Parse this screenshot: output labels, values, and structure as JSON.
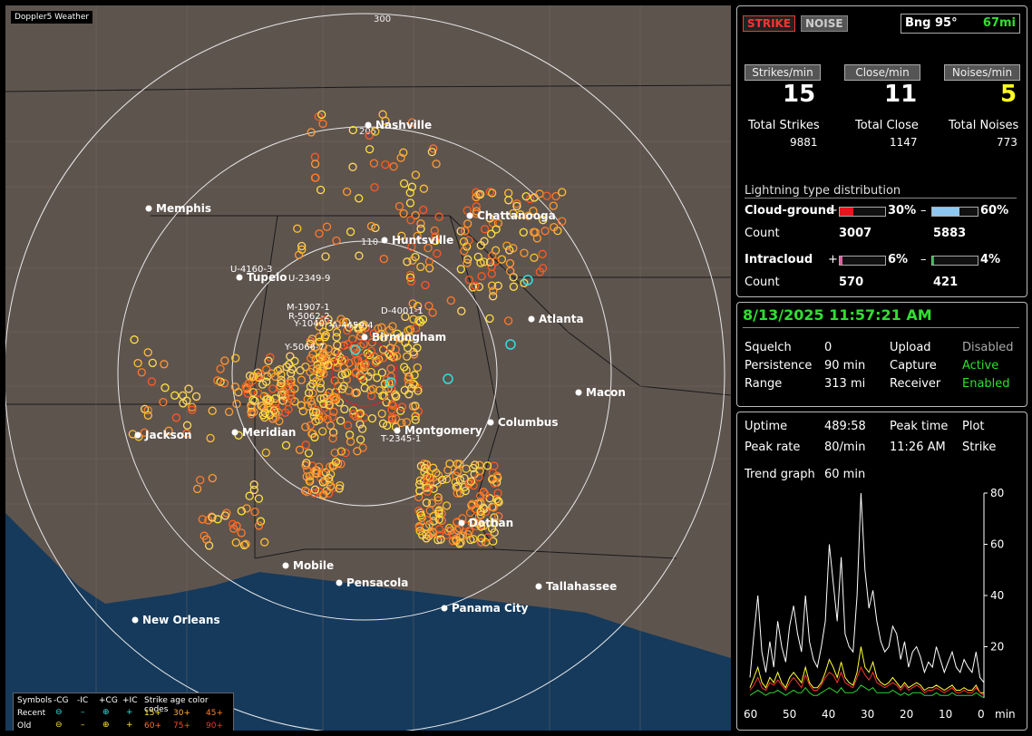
{
  "app_title": "Doppler5 Weather",
  "map": {
    "range_labels": [
      "300",
      "205",
      "110"
    ],
    "cities": [
      "Nashville",
      "Memphis",
      "Chattanooga",
      "Huntsville",
      "Tupelo",
      "Atlanta",
      "Birmingham",
      "Macon",
      "Jackson",
      "Meridian",
      "Montgomery",
      "Columbus",
      "Dothan",
      "Mobile",
      "Pensacola",
      "Tallahassee",
      "Panama City",
      "New Orleans"
    ],
    "strike_tags": [
      "U-4160-3",
      "U-2349-9",
      "M-1907-1",
      "R-5062-2",
      "Y-1040-1",
      "A-4459-4",
      "D-4001-1",
      "Y-5066-7",
      "T-2345-1"
    ]
  },
  "legend": {
    "symbols_label": "Symbols",
    "recent_label": "Recent",
    "old_label": "Old",
    "types": [
      "-CG",
      "-IC",
      "+CG",
      "+IC"
    ],
    "age_label": "Strike age color codes",
    "recent_ages": [
      "15+",
      "30+",
      "45+"
    ],
    "old_ages": [
      "60+",
      "75+",
      "90+"
    ]
  },
  "status": {
    "strike_btn": "STRIKE",
    "noise_btn": "NOISE",
    "bearing": "Bng 95°",
    "distance": "67mi"
  },
  "rates": {
    "strikes_label": "Strikes/min",
    "close_label": "Close/min",
    "noises_label": "Noises/min",
    "strikes_value": "15",
    "close_value": "11",
    "noises_value": "5",
    "total_strikes_label": "Total Strikes",
    "total_close_label": "Total Close",
    "total_noises_label": "Total Noises",
    "total_strikes": "9881",
    "total_close": "1147",
    "total_noises": "773"
  },
  "distribution": {
    "title": "Lightning type distribution",
    "cg_label": "Cloud-ground",
    "ic_label": "Intracloud",
    "count_label": "Count",
    "plus": "+",
    "minus": "–",
    "cg_pos_pct": "30%",
    "cg_neg_pct": "60%",
    "cg_pos_count": "3007",
    "cg_neg_count": "5883",
    "ic_pos_pct": "6%",
    "ic_neg_pct": "4%",
    "ic_pos_count": "570",
    "ic_neg_count": "421",
    "cg_pos_fill": 0.3,
    "cg_neg_fill": 0.6,
    "ic_pos_fill": 0.06,
    "ic_neg_fill": 0.04,
    "colors": {
      "cg_pos": "#e8141e",
      "cg_neg": "#8ec8f0",
      "ic_pos": "#e060a0",
      "ic_neg": "#20c040"
    }
  },
  "clock": {
    "datetime": "8/13/2025 11:57:21 AM"
  },
  "settings": {
    "squelch_label": "Squelch",
    "squelch": "0",
    "persistence_label": "Persistence",
    "persistence": "90 min",
    "range_label": "Range",
    "range": "313 mi",
    "upload_label": "Upload",
    "upload": "Disabled",
    "capture_label": "Capture",
    "capture": "Active",
    "receiver_label": "Receiver",
    "receiver": "Enabled"
  },
  "stats": {
    "uptime_label": "Uptime",
    "uptime": "489:58",
    "peak_time_label": "Peak time",
    "peak_time": "11:26 AM",
    "plot_label": "Plot",
    "plot": "Strike",
    "peak_rate_label": "Peak rate",
    "peak_rate": "80/min",
    "trend_label": "Trend graph",
    "trend": "60 min"
  },
  "chart_data": {
    "type": "line",
    "x_ticks": [
      "60",
      "50",
      "40",
      "30",
      "20",
      "10",
      "0"
    ],
    "x_unit": "min",
    "y_ticks": [
      "80",
      "60",
      "40",
      "20"
    ],
    "ylim": [
      0,
      80
    ],
    "xlim": [
      60,
      0
    ],
    "series": [
      {
        "color": "#ffffff",
        "values": [
          8,
          25,
          40,
          18,
          10,
          22,
          12,
          30,
          20,
          14,
          28,
          36,
          25,
          18,
          40,
          22,
          15,
          12,
          20,
          30,
          60,
          45,
          30,
          55,
          25,
          20,
          18,
          40,
          80,
          50,
          35,
          42,
          30,
          22,
          18,
          20,
          28,
          25,
          15,
          22,
          12,
          18,
          20,
          16,
          10,
          14,
          12,
          20,
          15,
          10,
          14,
          18,
          12,
          10,
          15,
          12,
          10,
          18,
          8,
          6
        ]
      },
      {
        "color": "#ffff30",
        "values": [
          4,
          8,
          12,
          6,
          4,
          8,
          6,
          10,
          6,
          4,
          8,
          10,
          8,
          6,
          12,
          6,
          4,
          4,
          6,
          10,
          15,
          12,
          8,
          14,
          8,
          6,
          5,
          10,
          20,
          12,
          10,
          14,
          8,
          6,
          5,
          6,
          8,
          6,
          4,
          6,
          4,
          5,
          6,
          5,
          3,
          4,
          4,
          5,
          4,
          3,
          4,
          5,
          3,
          3,
          4,
          3,
          3,
          5,
          2,
          2
        ]
      },
      {
        "color": "#ff3030",
        "values": [
          3,
          5,
          8,
          4,
          3,
          6,
          5,
          7,
          5,
          3,
          6,
          8,
          6,
          4,
          9,
          5,
          3,
          3,
          5,
          8,
          10,
          9,
          6,
          10,
          6,
          5,
          4,
          8,
          12,
          9,
          7,
          10,
          6,
          5,
          4,
          5,
          6,
          5,
          3,
          5,
          3,
          4,
          5,
          4,
          2,
          3,
          3,
          4,
          3,
          2,
          3,
          4,
          2,
          2,
          3,
          2,
          2,
          4,
          2,
          1
        ]
      },
      {
        "color": "#30d030",
        "values": [
          1,
          2,
          3,
          2,
          1,
          2,
          2,
          3,
          2,
          1,
          2,
          3,
          2,
          2,
          4,
          2,
          1,
          1,
          2,
          3,
          4,
          3,
          2,
          4,
          2,
          2,
          2,
          3,
          5,
          4,
          3,
          4,
          2,
          2,
          2,
          2,
          3,
          2,
          1,
          2,
          1,
          2,
          2,
          2,
          1,
          1,
          1,
          2,
          1,
          1,
          1,
          2,
          1,
          1,
          1,
          1,
          1,
          2,
          1,
          0
        ]
      }
    ]
  }
}
